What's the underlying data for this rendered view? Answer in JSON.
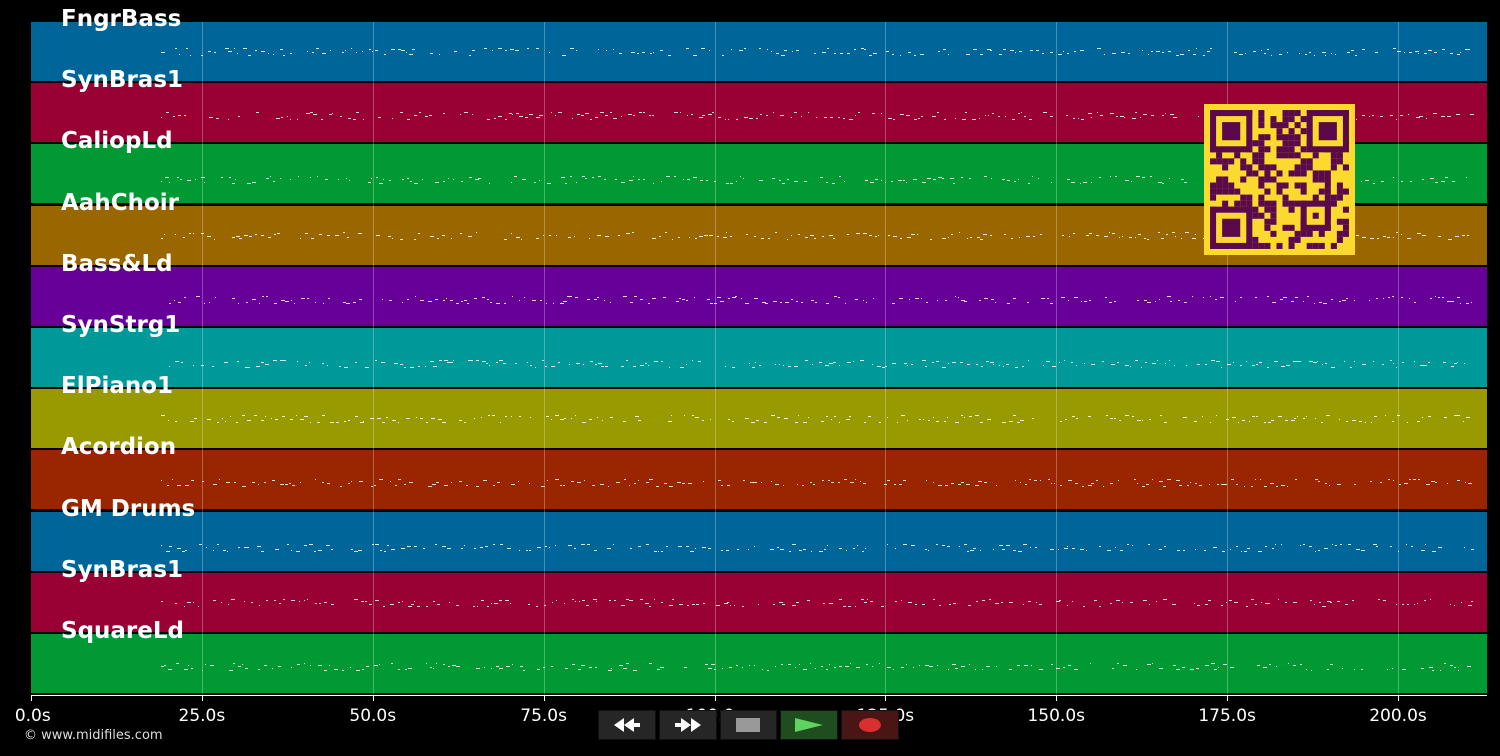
{
  "tracks": [
    {
      "name": "FngrBass",
      "color": "#006699"
    },
    {
      "name": "SynBras1",
      "color": "#990033"
    },
    {
      "name": "CaliopLd",
      "color": "#009933"
    },
    {
      "name": "AahChoir",
      "color": "#996600"
    },
    {
      "name": "Bass&Ld",
      "color": "#660099"
    },
    {
      "name": "SynStrg1",
      "color": "#009999"
    },
    {
      "name": "ElPiano1",
      "color": "#999900"
    },
    {
      "name": "Acordion",
      "color": "#992600"
    },
    {
      "name": "GM Drums",
      "color": "#006699"
    },
    {
      "name": "SynBras1",
      "color": "#990033"
    },
    {
      "name": "SquareLd",
      "color": "#009933"
    }
  ],
  "timeline": {
    "ticks": [
      "0.0s",
      "25.0s",
      "50.0s",
      "75.0s",
      "100.0s",
      "125.0s",
      "150.0s",
      "175.0s",
      "200.0s"
    ],
    "tick_seconds": [
      0,
      25,
      50,
      75,
      100,
      125,
      150,
      175,
      200
    ],
    "duration_seconds": 213
  },
  "controls": {
    "rewind_icon": "rewind-icon",
    "forward_icon": "fast-forward-icon",
    "stop_icon": "stop-icon",
    "play_icon": "play-icon",
    "record_icon": "record-icon"
  },
  "copyright": "© www.midifiles.com",
  "qr_code": {
    "color": "#fbd92e",
    "module_color": "#5a0a4a"
  }
}
